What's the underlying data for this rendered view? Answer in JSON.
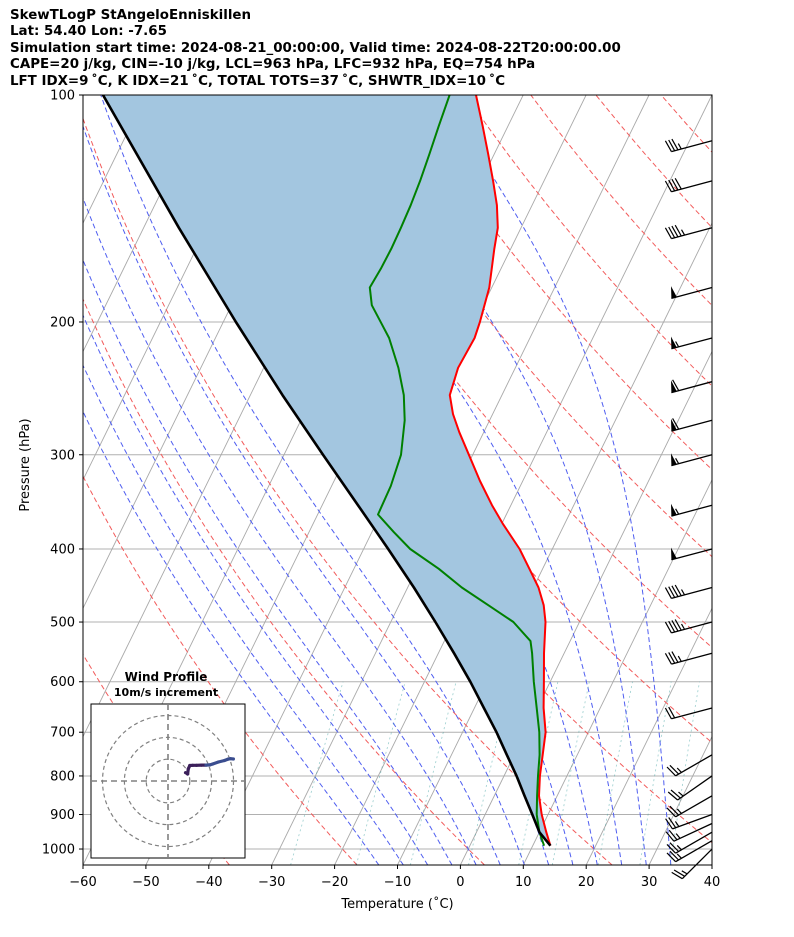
{
  "header": {
    "lines": [
      "SkewTLogP StAngeloEnniskillen",
      "Lat: 54.40   Lon: -7.65",
      "Simulation start time: 2024-08-21_00:00:00, Valid time: 2024-08-22T20:00:00.00",
      "CAPE=20 j/kg, CIN=-10 j/kg, LCL=963 hPa, LFC=932 hPa, EQ=754 hPa",
      "LFT IDX=9 ˚C, K IDX=21 ˚C, TOTAL TOTS=37 ˚C, SHWTR_IDX=10 ˚C"
    ]
  },
  "chart_data": [
    {
      "type": "line",
      "subtype": "skew-T log-P",
      "xlabel": "Temperature (˚C)",
      "ylabel": "Pressure (hPa)",
      "xlim": [
        -60,
        40
      ],
      "ylim": [
        1050,
        100
      ],
      "y_scale": "log",
      "x_ticks": [
        -60,
        -50,
        -40,
        -30,
        -20,
        -10,
        0,
        10,
        20,
        30,
        40
      ],
      "x_tick_labels": [
        "−60",
        "−50",
        "−40",
        "−30",
        "−20",
        "−10",
        "0",
        "10",
        "20",
        "30",
        "40"
      ],
      "y_ticks": [
        1000,
        900,
        800,
        700,
        600,
        500,
        400,
        300,
        200,
        100
      ],
      "y_tick_labels": [
        "1000",
        "900",
        "800",
        "700",
        "600",
        "500",
        "400",
        "300",
        "200",
        "100"
      ],
      "grid": true,
      "series": [
        {
          "role": "temperature",
          "color": "#ff0000",
          "points": [
            [
              990,
              12.8
            ],
            [
              950,
              11.1
            ],
            [
              900,
              9.0
            ],
            [
              850,
              7.1
            ],
            [
              800,
              5.7
            ],
            [
              750,
              4.5
            ],
            [
              700,
              3.2
            ],
            [
              650,
              1.0
            ],
            [
              600,
              -1.0
            ],
            [
              550,
              -3.2
            ],
            [
              500,
              -5.4
            ],
            [
              475,
              -7.0
            ],
            [
              450,
              -9.2
            ],
            [
              425,
              -12.1
            ],
            [
              400,
              -15.2
            ],
            [
              370,
              -19.9
            ],
            [
              350,
              -23.0
            ],
            [
              325,
              -26.8
            ],
            [
              300,
              -30.6
            ],
            [
              280,
              -33.9
            ],
            [
              265,
              -36.3
            ],
            [
              250,
              -38.3
            ],
            [
              230,
              -39.1
            ],
            [
              210,
              -38.8
            ],
            [
              200,
              -39.2
            ],
            [
              180,
              -40.4
            ],
            [
              160,
              -42.6
            ],
            [
              150,
              -43.7
            ],
            [
              140,
              -45.6
            ],
            [
              130,
              -48.1
            ],
            [
              120,
              -50.9
            ],
            [
              110,
              -54.0
            ],
            [
              100,
              -57.5
            ]
          ]
        },
        {
          "role": "dewpoint",
          "color": "#008000",
          "points": [
            [
              990,
              11.8
            ],
            [
              950,
              10.0
            ],
            [
              900,
              8.2
            ],
            [
              850,
              6.8
            ],
            [
              800,
              5.4
            ],
            [
              750,
              4.0
            ],
            [
              700,
              2.2
            ],
            [
              650,
              -0.1
            ],
            [
              600,
              -2.6
            ],
            [
              550,
              -5.1
            ],
            [
              530,
              -6.3
            ],
            [
              500,
              -10.5
            ],
            [
              475,
              -15.8
            ],
            [
              450,
              -21.4
            ],
            [
              425,
              -26.5
            ],
            [
              400,
              -32.6
            ],
            [
              380,
              -36.5
            ],
            [
              360,
              -40.4
            ],
            [
              330,
              -40.6
            ],
            [
              300,
              -41.4
            ],
            [
              270,
              -43.5
            ],
            [
              250,
              -45.6
            ],
            [
              230,
              -48.6
            ],
            [
              210,
              -52.4
            ],
            [
              190,
              -57.7
            ],
            [
              180,
              -59.4
            ],
            [
              170,
              -59.1
            ],
            [
              160,
              -59.0
            ],
            [
              150,
              -59.1
            ],
            [
              140,
              -59.3
            ],
            [
              130,
              -59.7
            ],
            [
              120,
              -60.3
            ],
            [
              110,
              -61.0
            ],
            [
              100,
              -61.7
            ]
          ]
        },
        {
          "role": "parcel",
          "color": "#000000",
          "points": [
            [
              990,
              12.8
            ],
            [
              950,
              10.0
            ],
            [
              900,
              7.5
            ],
            [
              850,
              4.8
            ],
            [
              800,
              2.0
            ],
            [
              750,
              -1.2
            ],
            [
              700,
              -4.6
            ],
            [
              650,
              -8.5
            ],
            [
              600,
              -12.7
            ],
            [
              550,
              -17.5
            ],
            [
              500,
              -22.9
            ],
            [
              450,
              -29.0
            ],
            [
              400,
              -36.1
            ],
            [
              350,
              -44.3
            ],
            [
              300,
              -53.8
            ],
            [
              250,
              -64.9
            ],
            [
              200,
              -78.0
            ],
            [
              150,
              -94.4
            ],
            [
              100,
              -116.8
            ]
          ]
        }
      ],
      "cape_fill_color": "#a3c6e0",
      "wind_barbs": [
        {
          "p": 1000,
          "speed_kt": 25,
          "dir": 225
        },
        {
          "p": 975,
          "speed_kt": 25,
          "dir": 240
        },
        {
          "p": 950,
          "speed_kt": 25,
          "dir": 240
        },
        {
          "p": 925,
          "speed_kt": 25,
          "dir": 245
        },
        {
          "p": 900,
          "speed_kt": 25,
          "dir": 250
        },
        {
          "p": 850,
          "speed_kt": 25,
          "dir": 240
        },
        {
          "p": 800,
          "speed_kt": 25,
          "dir": 235
        },
        {
          "p": 750,
          "speed_kt": 25,
          "dir": 240
        },
        {
          "p": 650,
          "speed_kt": 20,
          "dir": 255
        },
        {
          "p": 550,
          "speed_kt": 35,
          "dir": 255
        },
        {
          "p": 500,
          "speed_kt": 45,
          "dir": 255
        },
        {
          "p": 450,
          "speed_kt": 45,
          "dir": 255
        },
        {
          "p": 400,
          "speed_kt": 50,
          "dir": 255
        },
        {
          "p": 350,
          "speed_kt": 55,
          "dir": 255
        },
        {
          "p": 300,
          "speed_kt": 55,
          "dir": 255
        },
        {
          "p": 270,
          "speed_kt": 60,
          "dir": 255
        },
        {
          "p": 240,
          "speed_kt": 60,
          "dir": 255
        },
        {
          "p": 210,
          "speed_kt": 55,
          "dir": 255
        },
        {
          "p": 180,
          "speed_kt": 50,
          "dir": 255
        },
        {
          "p": 150,
          "speed_kt": 45,
          "dir": 255
        },
        {
          "p": 130,
          "speed_kt": 40,
          "dir": 255
        },
        {
          "p": 115,
          "speed_kt": 35,
          "dir": 255
        }
      ]
    },
    {
      "type": "line",
      "subtype": "hodograph",
      "title": "Wind Profile",
      "subtitle": "10m/s increment",
      "rings_ms": [
        10,
        20,
        30
      ],
      "xlim": [
        -30,
        30
      ],
      "ylim": [
        -30,
        30
      ],
      "colors": [
        "#3b1f5a",
        "#3a4d8f"
      ],
      "u_ms": [
        8.0,
        8.7,
        9.0,
        9.3,
        10.0,
        11.3,
        13.1,
        15.4,
        17.4,
        19.2,
        20.5,
        23.1,
        25.9,
        27.4,
        28.7,
        30.0
      ],
      "v_ms": [
        3.8,
        3.5,
        3.2,
        5.6,
        7.1,
        7.2,
        7.2,
        7.3,
        7.3,
        7.4,
        7.8,
        8.7,
        9.4,
        10.0,
        10.2,
        10.1
      ]
    }
  ]
}
